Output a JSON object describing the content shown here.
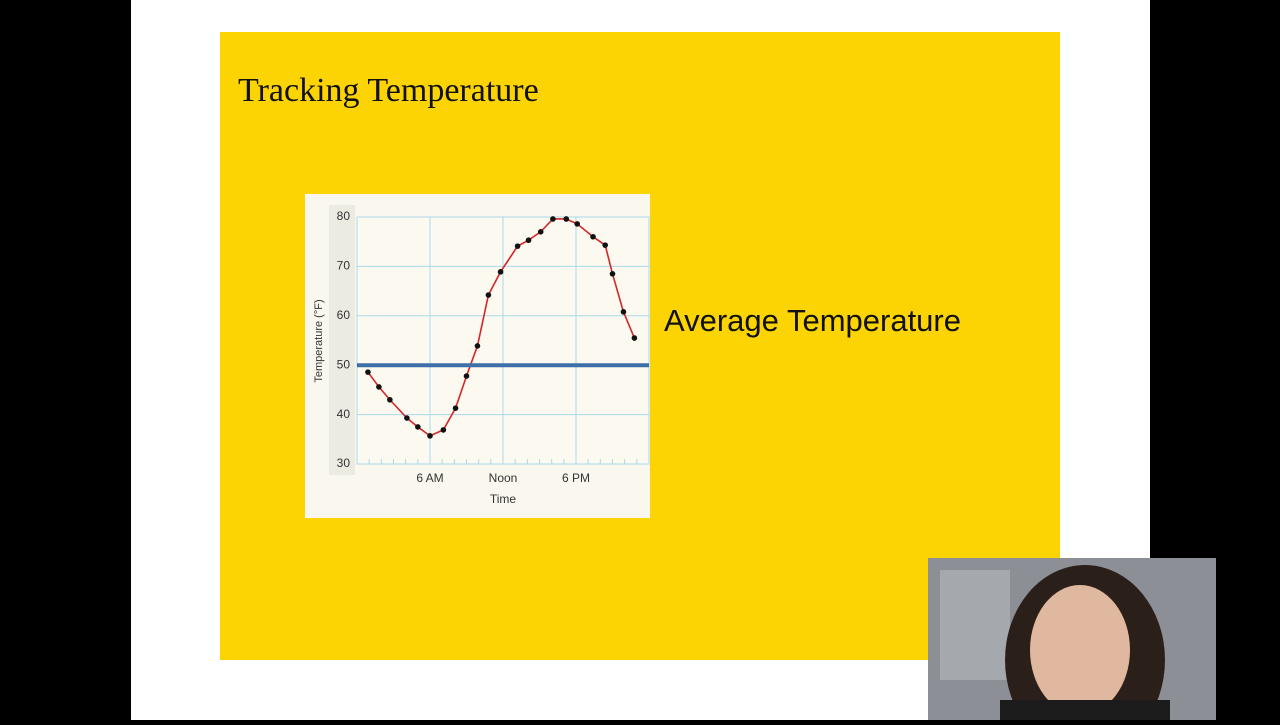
{
  "slide_title": "Tracking Temperature",
  "chart_data": {
    "type": "line",
    "x_label": "Time",
    "y_label": "Temperature (°F)",
    "annotation": "Average Temperature",
    "reference_value": 50,
    "reference_color": "#3d6fa8",
    "xlim": [
      0,
      24
    ],
    "xticks": [
      {
        "value": 6,
        "label": "6 AM"
      },
      {
        "value": 12,
        "label": "Noon"
      },
      {
        "value": 18,
        "label": "6 PM"
      }
    ],
    "ylim": [
      30,
      80
    ],
    "yticks": [
      30,
      40,
      50,
      60,
      70,
      80
    ],
    "grid": true,
    "x": [
      0.9,
      1.8,
      2.7,
      4.1,
      5.0,
      6.0,
      7.1,
      8.1,
      9.0,
      9.9,
      10.8,
      11.8,
      13.2,
      14.1,
      15.1,
      16.1,
      17.2,
      18.1,
      19.4,
      20.4,
      21.0,
      21.9,
      22.8
    ],
    "series": [
      {
        "color": "#d3272a",
        "values": [
          48.6,
          45.6,
          43.0,
          39.3,
          37.5,
          35.7,
          36.9,
          41.3,
          47.8,
          53.9,
          64.2,
          68.9,
          74.1,
          75.3,
          77.0,
          79.6,
          79.6,
          78.6,
          76.0,
          74.3,
          68.5,
          60.8,
          55.5
        ]
      }
    ]
  }
}
